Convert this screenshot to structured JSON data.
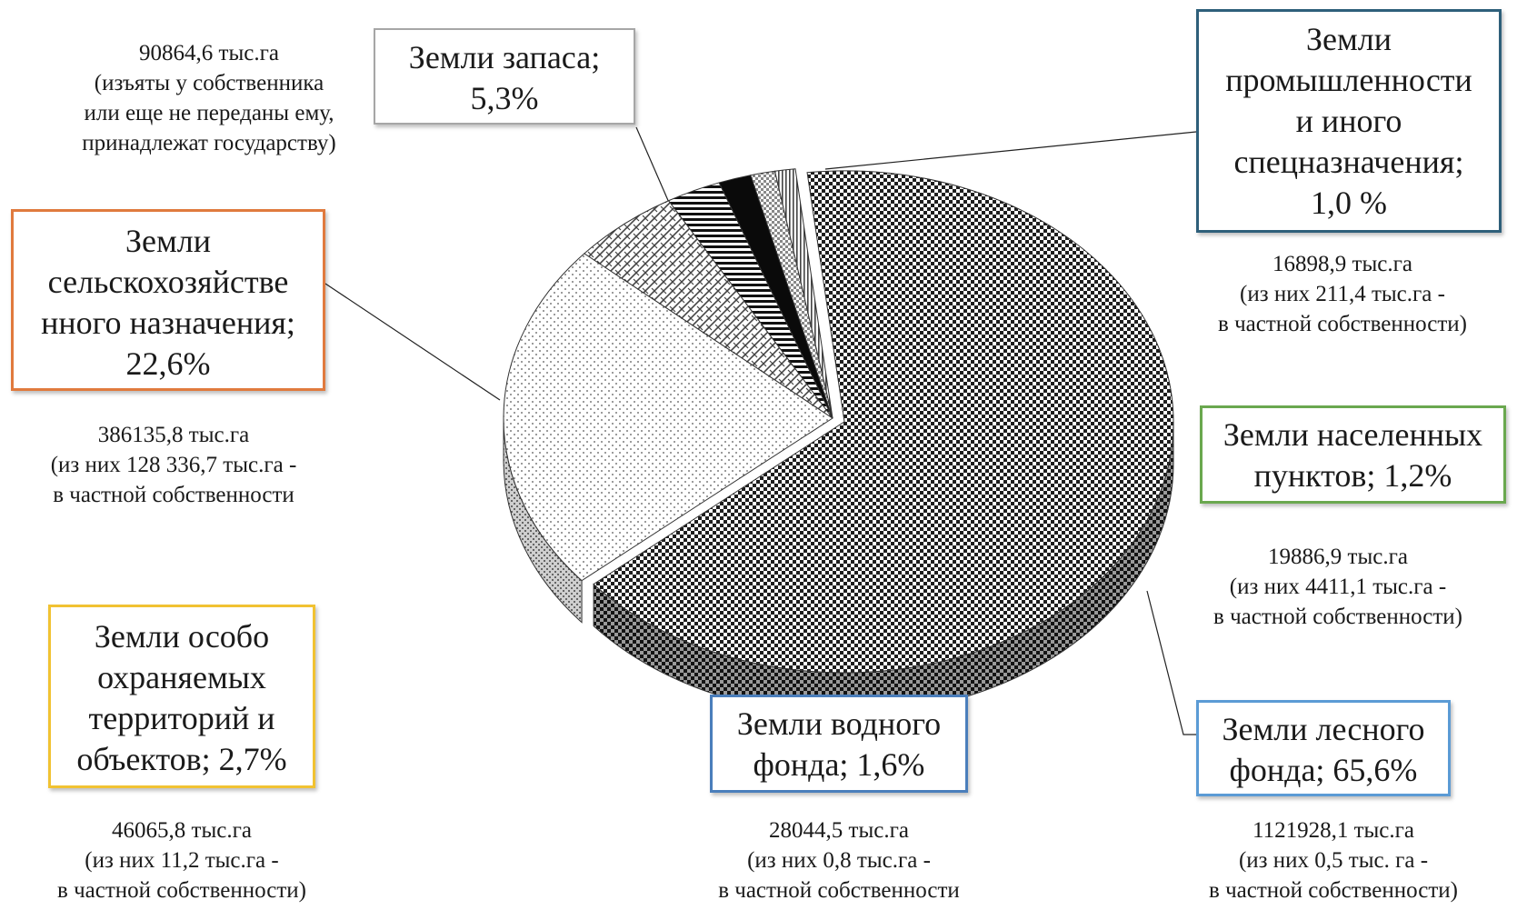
{
  "chart_data": {
    "type": "pie",
    "style": "3d-exploded-hatched",
    "slices": [
      {
        "key": "forest",
        "label": "Земли лесного фонда",
        "share": 65.6,
        "area_thous_ha": 1121928.1,
        "private_thous_ha": 0.5,
        "pattern": "checker-dark"
      },
      {
        "key": "agri",
        "label": "Земли сельскохозяйственного назначения",
        "share": 22.6,
        "area_thous_ha": 386135.8,
        "private_thous_ha": 128336.7,
        "pattern": "dots"
      },
      {
        "key": "reserve",
        "label": "Земли запаса",
        "share": 5.3,
        "area_thous_ha": 90864.6,
        "pattern": "weave"
      },
      {
        "key": "protected",
        "label": "Земли особо охраняемых территорий и объектов",
        "share": 2.7,
        "area_thous_ha": 46065.8,
        "private_thous_ha": 11.2,
        "pattern": "horizontal-stripes"
      },
      {
        "key": "water",
        "label": "Земли водного фонда",
        "share": 1.6,
        "area_thous_ha": 28044.5,
        "private_thous_ha": 0.8,
        "pattern": "solid-black"
      },
      {
        "key": "settlements",
        "label": "Земли населенных пунктов",
        "share": 1.2,
        "area_thous_ha": 19886.9,
        "private_thous_ha": 4411.1,
        "pattern": "checker-light"
      },
      {
        "key": "industry",
        "label": "Земли промышленности и иного спецназначения",
        "share": 1.0,
        "area_thous_ha": 16898.9,
        "private_thous_ha": 211.4,
        "pattern": "vertical-lines"
      }
    ]
  },
  "labels": {
    "reserve": {
      "lines": [
        "Земли запаса;",
        "5,3%"
      ],
      "border": "#a6a6a6"
    },
    "industry": {
      "lines": [
        "Земли",
        "промышленности",
        "и иного",
        "спецназначения;",
        "1,0 %"
      ],
      "border": "#2e5f7a"
    },
    "agri": {
      "lines": [
        "Земли",
        "сельскохозяйстве",
        "нного назначения;",
        "22,6%"
      ],
      "border": "#e07a3e"
    },
    "settlements": {
      "lines": [
        "Земли населенных",
        "пунктов; 1,2%"
      ],
      "border": "#6aa84f"
    },
    "protected": {
      "lines": [
        "Земли особо",
        "охраняемых",
        "территорий и",
        "объектов; 2,7%"
      ],
      "border": "#f1c232"
    },
    "water": {
      "lines": [
        "Земли водного",
        "фонда; 1,6%"
      ],
      "border": "#4a7ebb"
    },
    "forest": {
      "lines": [
        "Земли лесного",
        "фонда; 65,6%"
      ],
      "border": "#5b9bd5"
    }
  },
  "notes": {
    "reserve": [
      "90864,6 тыс.га",
      "(изъяты у собственника",
      "или еще не переданы ему,",
      "принадлежат  государству)"
    ],
    "industry": [
      "16898,9 тыс.га",
      "(из них  211,4 тыс.га -",
      "в частной собственности)"
    ],
    "agri": [
      "386135,8 тыс.га",
      "(из них  128 336,7 тыс.га -",
      "в частной собственности"
    ],
    "settlements": [
      "19886,9 тыс.га",
      "(из них  4411,1 тыс.га -",
      "в частной собственности)"
    ],
    "protected": [
      "46065,8 тыс.га",
      "(из них  11,2 тыс.га -",
      "в частной собственности)"
    ],
    "water": [
      "28044,5 тыс.га",
      "(из них  0,8 тыс.га -",
      "в частной собственности"
    ],
    "forest": [
      "1121928,1 тыс.га",
      "(из них  0,5 тыс. га -",
      "в частной собственности)"
    ]
  }
}
